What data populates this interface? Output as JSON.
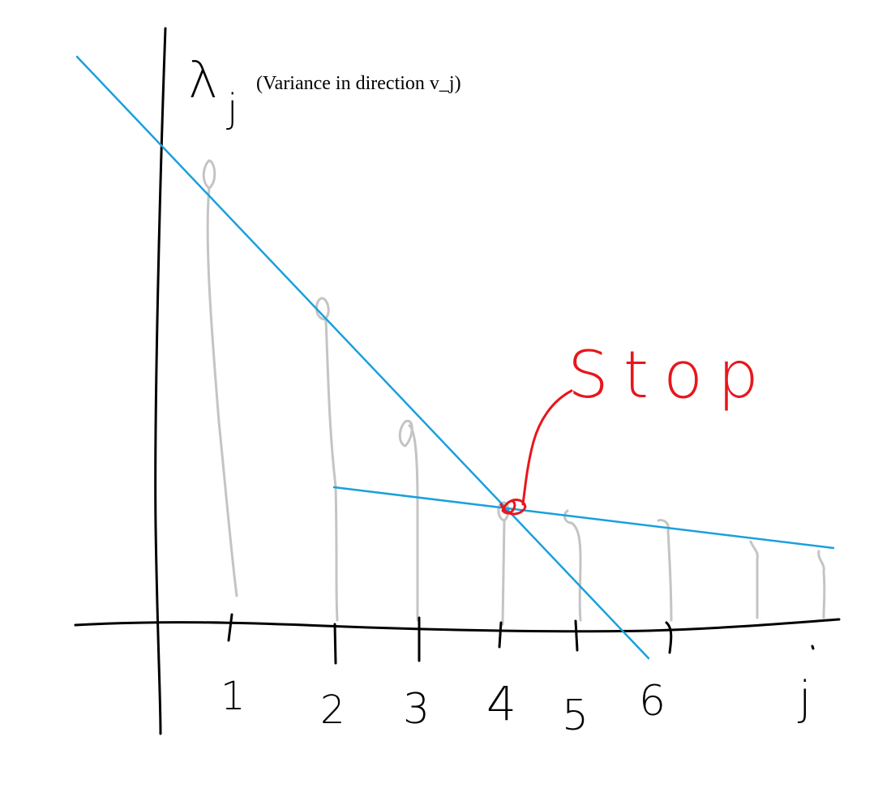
{
  "axis_label": {
    "symbol": "λ",
    "subscript": "j",
    "note": "(Variance in direction v_j)"
  },
  "x_labels": [
    "1",
    "2",
    "3",
    "4",
    "5",
    "6",
    "j"
  ],
  "annotation": "Stop"
}
